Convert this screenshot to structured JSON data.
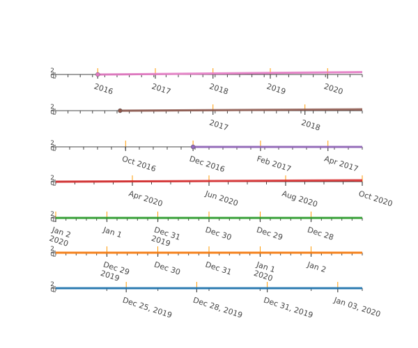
{
  "chart_data": [
    {
      "type": "line",
      "color": "#e377c2",
      "y_ticks": [
        "2",
        "0"
      ],
      "major_ticks": [
        {
          "label": "2016",
          "t": 0.137
        },
        {
          "label": "2017",
          "t": 0.325
        },
        {
          "label": "2018",
          "t": 0.513
        },
        {
          "label": "2019",
          "t": 0.7
        },
        {
          "label": "2020",
          "t": 0.887
        }
      ],
      "minor_count": 25,
      "gridlines": "#ff9900",
      "line": {
        "start": 0.137,
        "y0": 0.0,
        "y1": 0.35
      },
      "marker": 0.137
    },
    {
      "type": "line",
      "color": "#8c564b",
      "y_ticks": [
        "2",
        "0"
      ],
      "major_ticks": [
        {
          "label": "2017",
          "t": 0.513
        },
        {
          "label": "2018",
          "t": 0.813
        }
      ],
      "minor_count": 25,
      "gridlines": "#ff9900",
      "line": {
        "start": 0.21,
        "y0": 0.0,
        "y1": 0.2
      },
      "marker": 0.21
    },
    {
      "type": "line",
      "color": "#9467bd",
      "y_ticks": [
        "2",
        "0"
      ],
      "major_ticks": [
        {
          "label": "Oct 2016",
          "t": 0.228
        },
        {
          "label": "Dec 2016",
          "t": 0.448
        },
        {
          "label": "Feb 2017",
          "t": 0.668
        },
        {
          "label": "Apr 2017",
          "t": 0.888
        }
      ],
      "minor_count": 22,
      "gridlines": "#ff9900",
      "line": {
        "start": 0.448,
        "y0": 0.0,
        "y1": 0.0
      },
      "marker": 0.448
    },
    {
      "type": "line",
      "color": "#d62728",
      "y_ticks": [
        "2",
        "0"
      ],
      "major_ticks": [
        {
          "label": "Apr 2020",
          "t": 0.25
        },
        {
          "label": "Jun 2020",
          "t": 0.5
        },
        {
          "label": "Aug 2020",
          "t": 0.75
        },
        {
          "label": "Oct 2020",
          "t": 1.0
        }
      ],
      "minor_count": 16,
      "gridlines": "#ff9900",
      "line": {
        "start": 0.0,
        "y0": 0.0,
        "y1": 0.2
      },
      "marker": null
    },
    {
      "type": "line",
      "color": "#2ca02c",
      "y_ticks": [
        "2",
        "0"
      ],
      "major_ticks": [
        {
          "label": "Jan 2\n2020",
          "t": 0.0
        },
        {
          "label": "Jan 1",
          "t": 0.167
        },
        {
          "label": "Dec 31\n2019",
          "t": 0.333
        },
        {
          "label": "Dec 30",
          "t": 0.5
        },
        {
          "label": "Dec 29",
          "t": 0.667
        },
        {
          "label": "Dec 28",
          "t": 0.833
        }
      ],
      "minor_count": 30,
      "gridlines": "#ff9900",
      "line": {
        "start": 0.0,
        "y0": 0.0,
        "y1": 0.0
      },
      "marker": null
    },
    {
      "type": "line",
      "color": "#ff7f0e",
      "y_ticks": [
        "2",
        "0"
      ],
      "major_ticks": [
        {
          "label": "Dec 29\n2019",
          "t": 0.167
        },
        {
          "label": "Dec 30",
          "t": 0.333
        },
        {
          "label": "Dec 31",
          "t": 0.5
        },
        {
          "label": "Jan 1\n2020",
          "t": 0.667
        },
        {
          "label": "Jan 2",
          "t": 0.833
        }
      ],
      "minor_count": 30,
      "gridlines": "#ff9900",
      "line": {
        "start": 0.0,
        "y0": 0.0,
        "y1": 0.0
      },
      "marker": null
    },
    {
      "type": "line",
      "color": "#1f77b4",
      "y_ticks": [
        "2",
        "0"
      ],
      "major_ticks": [
        {
          "label": "Dec 25, 2019",
          "t": 0.23
        },
        {
          "label": "Dec 28, 2019",
          "t": 0.46
        },
        {
          "label": "Dec 31, 2019",
          "t": 0.69
        },
        {
          "label": "Jan 03, 2020",
          "t": 0.92
        }
      ],
      "minor_count": 6,
      "gridlines": "#ff9900",
      "line": {
        "start": 0.0,
        "y0": 0.0,
        "y1": 0.0
      },
      "marker": null
    }
  ]
}
